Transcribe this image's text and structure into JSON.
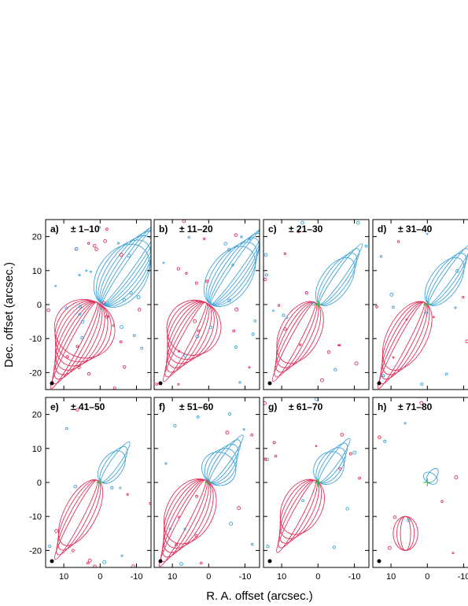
{
  "figure": {
    "ylabel": "Dec. offset (arcsec.)",
    "xlabel": "R. A. offset (arcsec.)"
  },
  "panels": [
    {
      "letter": "a)",
      "range": "± 1–10"
    },
    {
      "letter": "b)",
      "range": "± 11–20"
    },
    {
      "letter": "c)",
      "range": "± 21–30"
    },
    {
      "letter": "d)",
      "range": "± 31–40"
    },
    {
      "letter": "e)",
      "range": "± 41–50"
    },
    {
      "letter": "f)",
      "range": "± 51–60"
    },
    {
      "letter": "g)",
      "range": "± 61–70"
    },
    {
      "letter": "h)",
      "range": "± 71–80"
    }
  ],
  "axes": {
    "xticks": [
      "10",
      "0",
      "-10"
    ],
    "yticks": [
      "20",
      "10",
      "0",
      "-10",
      "-20"
    ],
    "xlim": [
      15,
      -14
    ],
    "ylim": [
      -25,
      25
    ]
  },
  "colors": {
    "redshifted": "#e0305a",
    "blueshifted": "#3fa3d8",
    "source_marker": "#35b835",
    "frame": "#000000"
  }
}
